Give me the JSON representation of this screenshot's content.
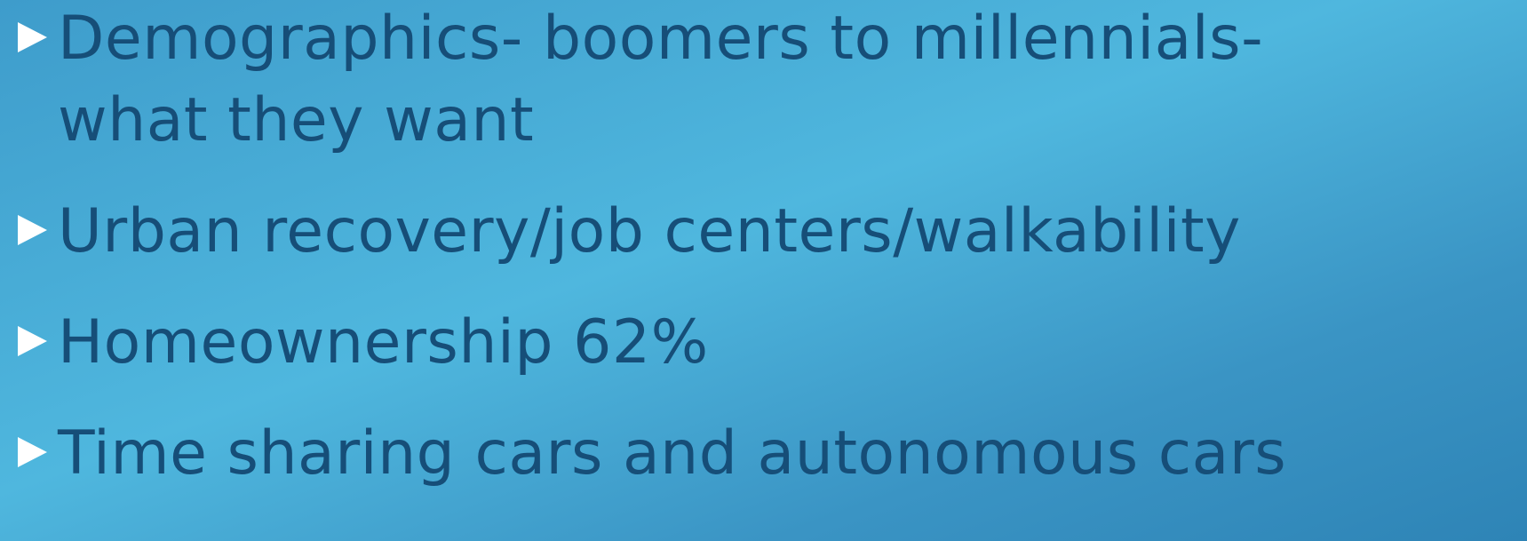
{
  "bullets": [
    "Demographics- boomers to millennials- what they want",
    "Urban recovery/job centers/walkability",
    "Homeownership 62%",
    "Time sharing cars and autonomous cars"
  ]
}
